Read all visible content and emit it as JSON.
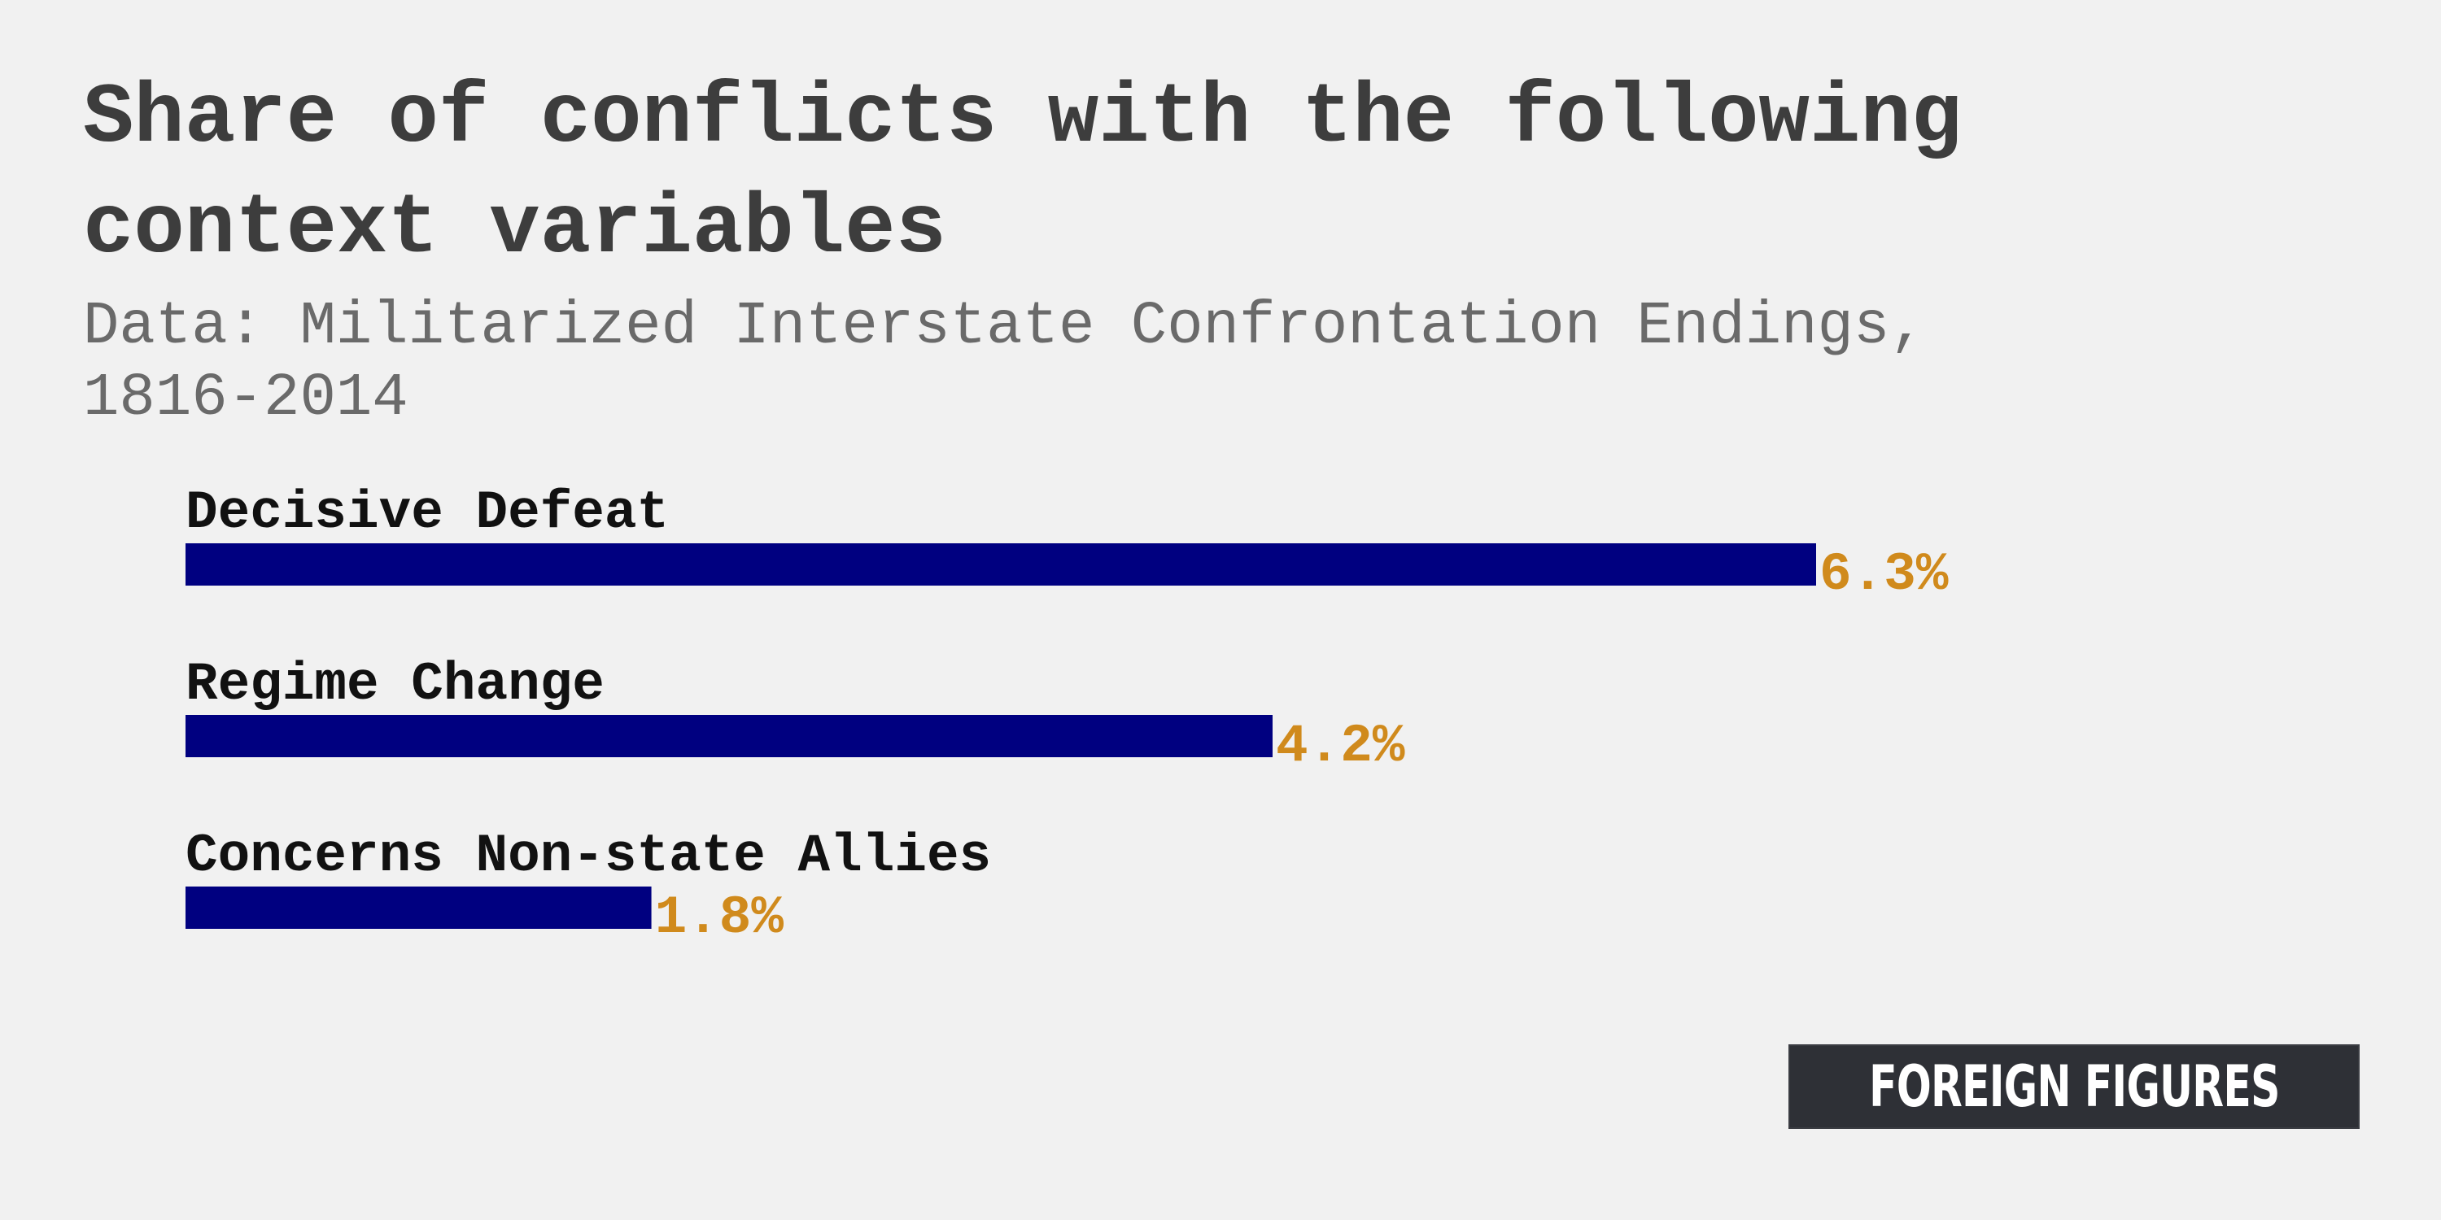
{
  "title": "Share of conflicts with the following context variables",
  "subtitle": "Data: Militarized Interstate Confrontation Endings, 1816-2014",
  "logo_text": "FOREIGN FIGURES",
  "colors": {
    "background": "#f1f1f1",
    "bar": "#000080",
    "value_label": "#d08a1c",
    "title": "#3d3d3d",
    "subtitle": "#6a6a6a",
    "category_label": "#111111"
  },
  "chart_data": {
    "type": "bar",
    "orientation": "horizontal",
    "categories": [
      "Decisive Defeat",
      "Regime Change",
      "Concerns Non-state Allies"
    ],
    "values": [
      6.3,
      4.2,
      1.8
    ],
    "value_labels": [
      "6.3%",
      "4.2%",
      "1.8%"
    ],
    "unit": "%",
    "xlim": [
      0,
      6.3
    ],
    "grid": false,
    "legend": "none"
  }
}
